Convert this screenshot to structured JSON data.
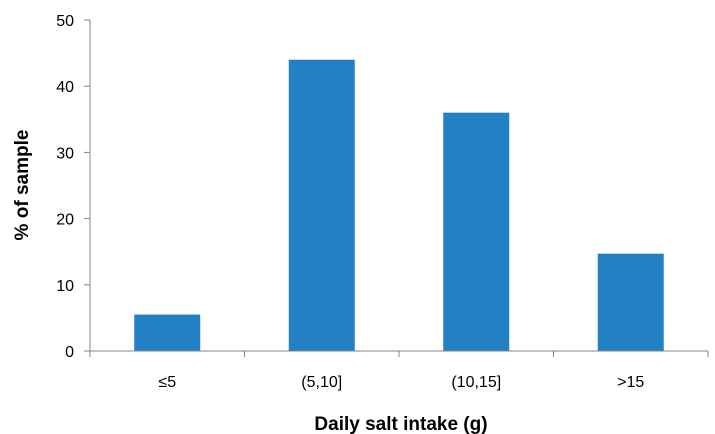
{
  "chart_data": {
    "type": "bar",
    "categories": [
      "≤5",
      "(5,10]",
      "(10,15]",
      ">15"
    ],
    "values": [
      5.5,
      44,
      36,
      14.7
    ],
    "title": "",
    "xlabel": "Daily salt intake (g)",
    "ylabel": "% of sample",
    "ylim": [
      0,
      50
    ],
    "yticks": [
      0,
      10,
      20,
      30,
      40,
      50
    ],
    "grid": false,
    "legend": "none",
    "bar_color": "#2281C4",
    "axis_color": "#868686"
  }
}
